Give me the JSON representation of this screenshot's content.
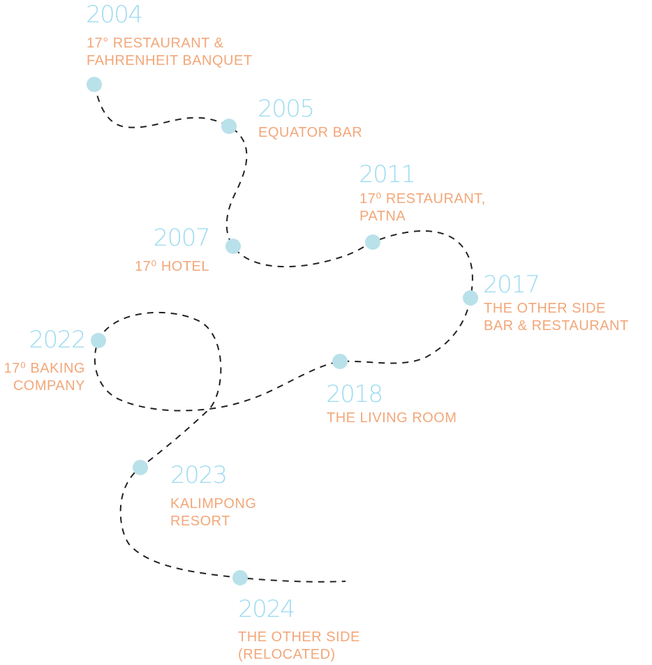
{
  "colors": {
    "year": "#9fdcf0",
    "label": "#f2a779",
    "dot": "#b9e1ea",
    "path": "#222222"
  },
  "milestones": [
    {
      "year": "2004",
      "label": "17° RESTAURANT &\nFAHRENHEIT BANQUET"
    },
    {
      "year": "2005",
      "label": "EQUATOR BAR"
    },
    {
      "year": "2007",
      "label": "17⁰ HOTEL"
    },
    {
      "year": "2011",
      "label": "17⁰ RESTAURANT,\nPATNA"
    },
    {
      "year": "2017",
      "label": "THE OTHER SIDE\nBAR & RESTAURANT"
    },
    {
      "year": "2018",
      "label": "THE LIVING ROOM"
    },
    {
      "year": "2022",
      "label": "17⁰ BAKING\nCOMPANY"
    },
    {
      "year": "2023",
      "label": "KALIMPONG\nRESORT"
    },
    {
      "year": "2024",
      "label": "THE OTHER SIDE\n(RELOCATED)"
    }
  ]
}
